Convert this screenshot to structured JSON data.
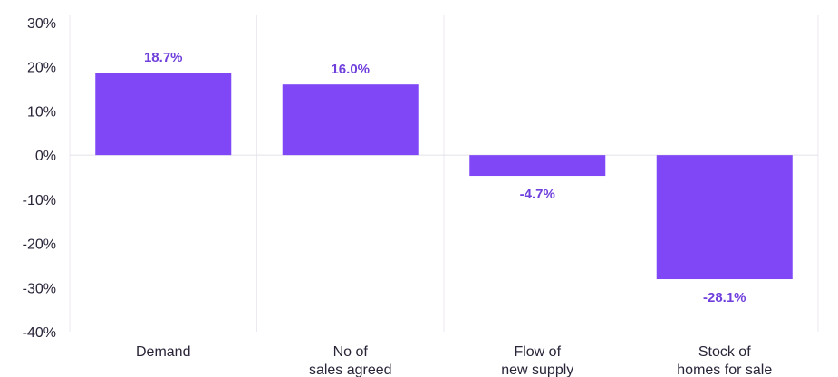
{
  "chart_data": {
    "type": "bar",
    "categories": [
      [
        "Demand"
      ],
      [
        "No of",
        "sales agreed"
      ],
      [
        "Flow of",
        "new supply"
      ],
      [
        "Stock of",
        "homes for sale"
      ]
    ],
    "values": [
      18.7,
      16.0,
      -4.7,
      -28.1
    ],
    "value_labels": [
      "18.7%",
      "16.0%",
      "-4.7%",
      "-28.1%"
    ],
    "ylim": [
      -40,
      30
    ],
    "yticks": [
      30,
      20,
      10,
      0,
      -10,
      -20,
      -30,
      -40
    ],
    "ytick_labels": [
      "30%",
      "20%",
      "10%",
      "0%",
      "-10%",
      "-20%",
      "-30%",
      "-40%"
    ],
    "grid": "vertical separators between categories",
    "title": "",
    "xlabel": "",
    "ylabel": ""
  },
  "colors": {
    "bar": "#7f47f5",
    "value_label": "#7040dc",
    "text": "#2a2438",
    "grid": "#ece9f0",
    "zero_line": "#e4e1ea"
  }
}
